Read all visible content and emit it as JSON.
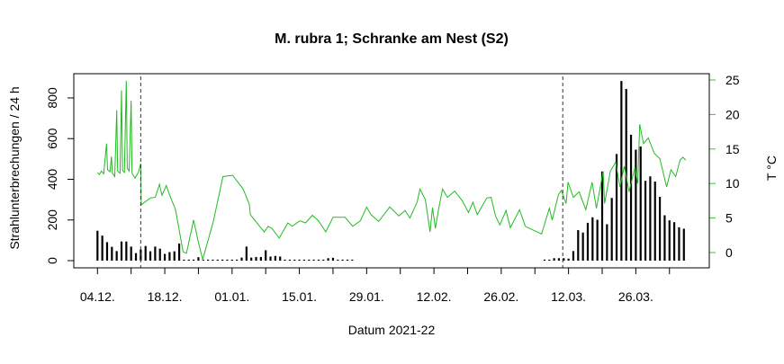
{
  "chart_data": {
    "type": "bar+line",
    "title": "M. rubra 1; Schranke am Nest (S2)",
    "xlabel": "Datum 2021-22",
    "ylabel": "Strahlunterbrechungen / 24 h",
    "ylabel_right": "T °C",
    "ylim": [
      0,
      900
    ],
    "ylim_right": [
      0,
      25
    ],
    "yticks": [
      0,
      200,
      400,
      600,
      800
    ],
    "yticks_right": [
      0,
      5,
      10,
      15,
      20,
      25
    ],
    "x_unit": "days since 04.12.2021",
    "xlim": [
      -6,
      126
    ],
    "xticks": [
      0,
      7,
      14,
      21,
      28,
      35,
      42,
      49,
      56,
      63,
      70,
      77,
      84,
      91,
      98,
      105,
      112,
      119
    ],
    "xtick_labels": [
      {
        "day": 0,
        "label": "04.12."
      },
      {
        "day": 14,
        "label": "18.12."
      },
      {
        "day": 28,
        "label": "01.01."
      },
      {
        "day": 42,
        "label": "15.01."
      },
      {
        "day": 56,
        "label": "29.01."
      },
      {
        "day": 70,
        "label": "12.02."
      },
      {
        "day": 84,
        "label": "26.02."
      },
      {
        "day": 98,
        "label": "12.03."
      },
      {
        "day": 112,
        "label": "26.03."
      }
    ],
    "vlines_day": [
      9,
      96.8
    ],
    "colors": {
      "bars": "#000000",
      "temperature": "#22bb22",
      "right_axis": "#33cc33",
      "vline": "#333333"
    },
    "series": [
      {
        "name": "Strahlunterbrechungen / 24 h",
        "kind": "bar",
        "segments": [
          {
            "start_day": 0,
            "values": [
              147,
              123,
              91,
              68,
              47,
              94,
              94,
              69,
              37,
              55,
              72,
              46,
              69,
              59,
              33,
              42,
              46,
              84,
              5,
              5,
              5,
              17,
              5,
              5,
              5,
              5,
              5,
              5,
              5,
              5,
              15,
              69,
              15,
              18,
              18,
              51,
              20,
              23,
              20,
              5,
              5,
              5,
              5,
              5,
              5,
              5,
              5,
              5,
              12,
              14,
              5,
              5,
              5,
              5
            ]
          },
          {
            "start_day": 93,
            "values": [
              5,
              5,
              12,
              12,
              12,
              10,
              47,
              150,
              138,
              186,
              213,
              201,
              438,
              179,
              308,
              524,
              883,
              844,
              619,
              546,
              561,
              392,
              414,
              389,
              314,
              223,
              198,
              189,
              164,
              157
            ]
          }
        ]
      },
      {
        "name": "T °C",
        "kind": "line",
        "points": [
          [
            0,
            11.6
          ],
          [
            0.4,
            11.3
          ],
          [
            0.8,
            11.8
          ],
          [
            1.3,
            11.4
          ],
          [
            1.9,
            15.8
          ],
          [
            2.1,
            12
          ],
          [
            2.6,
            11.7
          ],
          [
            2.9,
            13.9
          ],
          [
            3.1,
            11.5
          ],
          [
            3.6,
            11
          ],
          [
            4.0,
            20.6
          ],
          [
            4.2,
            11.8
          ],
          [
            4.7,
            11.5
          ],
          [
            5.0,
            23.5
          ],
          [
            5.2,
            11.9
          ],
          [
            5.6,
            11.6
          ],
          [
            6.0,
            24.9
          ],
          [
            6.2,
            12.2
          ],
          [
            6.6,
            11.8
          ],
          [
            7.0,
            22
          ],
          [
            7.2,
            11.5
          ],
          [
            7.8,
            10.8
          ],
          [
            8.5,
            11.6
          ],
          [
            9.0,
            12.9
          ],
          [
            9.1,
            6.9
          ],
          [
            10,
            7.4
          ],
          [
            11,
            7.9
          ],
          [
            12,
            8.0
          ],
          [
            12.9,
            9.9
          ],
          [
            13.4,
            8.3
          ],
          [
            14.3,
            9.7
          ],
          [
            15.3,
            7.8
          ],
          [
            16.2,
            6.3
          ],
          [
            16.5,
            5.2
          ],
          [
            17.8,
            0.1
          ],
          [
            18.5,
            -0.1
          ],
          [
            20,
            4.7
          ],
          [
            21,
            1.5
          ],
          [
            21.9,
            -1
          ],
          [
            24.1,
            4.5
          ],
          [
            26.1,
            11
          ],
          [
            28.1,
            11.2
          ],
          [
            30.3,
            9.2
          ],
          [
            31.6,
            7
          ],
          [
            31.8,
            5.5
          ],
          [
            32.7,
            4.7
          ],
          [
            33.5,
            4.0
          ],
          [
            34.7,
            3
          ],
          [
            35.5,
            3.8
          ],
          [
            36.3,
            3.5
          ],
          [
            37.8,
            2.1
          ],
          [
            39.6,
            4.3
          ],
          [
            40.5,
            3.8
          ],
          [
            42.1,
            4.6
          ],
          [
            43.3,
            4.3
          ],
          [
            44.7,
            5.4
          ],
          [
            46,
            4.6
          ],
          [
            47.5,
            3
          ],
          [
            49,
            5.1
          ],
          [
            51.5,
            5.1
          ],
          [
            53.1,
            3.8
          ],
          [
            54.7,
            4.6
          ],
          [
            56,
            6.6
          ],
          [
            56.9,
            5.5
          ],
          [
            58.5,
            4.5
          ],
          [
            60.8,
            6.6
          ],
          [
            62.7,
            5.3
          ],
          [
            64,
            6.1
          ],
          [
            65,
            5
          ],
          [
            66.5,
            7.3
          ],
          [
            67.1,
            9.2
          ],
          [
            68.2,
            7.7
          ],
          [
            69.2,
            3
          ],
          [
            69.7,
            6.5
          ],
          [
            70.3,
            3.5
          ],
          [
            71,
            6.4
          ],
          [
            71.8,
            9.2
          ],
          [
            72.8,
            8
          ],
          [
            74.3,
            8.9
          ],
          [
            75.9,
            7.5
          ],
          [
            77.2,
            5.8
          ],
          [
            78.1,
            7.3
          ],
          [
            79,
            5.5
          ],
          [
            81,
            7.9
          ],
          [
            81.9,
            8
          ],
          [
            82.8,
            5.3
          ],
          [
            83.7,
            4
          ],
          [
            85,
            6.1
          ],
          [
            85.9,
            3.6
          ],
          [
            87.8,
            6.2
          ],
          [
            89,
            3.8
          ],
          [
            90.8,
            3.2
          ],
          [
            92.4,
            2.7
          ],
          [
            94,
            6.4
          ],
          [
            94.6,
            4.7
          ],
          [
            95.9,
            8.4
          ],
          [
            96.5,
            9
          ],
          [
            97.5,
            7.1
          ],
          [
            97.9,
            10.2
          ],
          [
            99,
            8
          ],
          [
            100.2,
            8.8
          ],
          [
            101.6,
            6.2
          ],
          [
            102.9,
            10.2
          ],
          [
            103.8,
            6.4
          ],
          [
            105.2,
            11.8
          ],
          [
            105.5,
            7.1
          ],
          [
            106.7,
            11.8
          ],
          [
            107.8,
            13.1
          ],
          [
            108.7,
            9.5
          ],
          [
            109.6,
            12.5
          ],
          [
            110.6,
            8.8
          ],
          [
            111.8,
            12.3
          ],
          [
            112.4,
            10
          ],
          [
            112.8,
            18.6
          ],
          [
            113.6,
            15.8
          ],
          [
            114.6,
            16.6
          ],
          [
            115.8,
            14.4
          ],
          [
            117,
            13.6
          ],
          [
            118.4,
            9.5
          ],
          [
            119.3,
            12
          ],
          [
            120.3,
            11
          ],
          [
            121.2,
            13.4
          ],
          [
            121.8,
            13.8
          ],
          [
            122.4,
            13.4
          ]
        ]
      }
    ]
  }
}
